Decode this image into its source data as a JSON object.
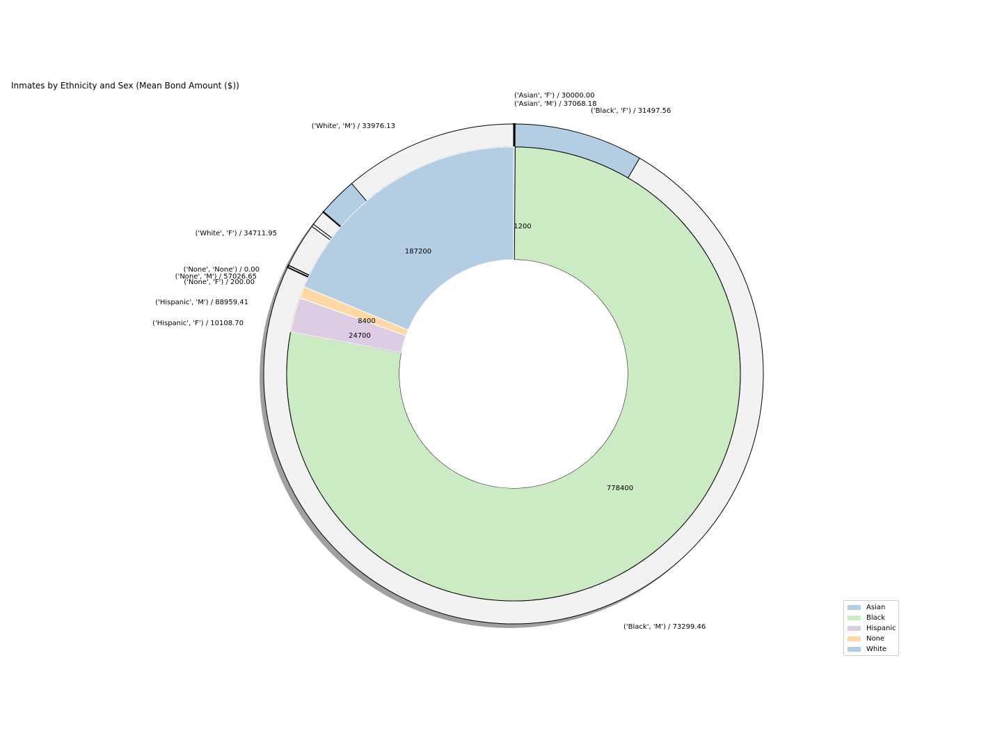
{
  "chart_data": {
    "type": "pie",
    "subtype": "nested-donut",
    "title": "Inmates by Ethnicity and Sex (Mean Bond Amount ($))",
    "inner_ring": {
      "description": "Total bond amount by ethnicity",
      "categories": [
        "Asian",
        "Black",
        "Hispanic",
        "None",
        "White"
      ],
      "values": [
        1200,
        778400,
        24700,
        8400,
        187200
      ],
      "labels": [
        "1200",
        "778400",
        "24700",
        "8400",
        "187200"
      ],
      "colors": [
        "#b3cde3",
        "#ccebc5",
        "#decbe4",
        "#fed9a6",
        "#b3cde3"
      ]
    },
    "outer_ring": {
      "description": "Mean bond amount by (ethnicity, sex)",
      "labels": [
        "('Asian', 'F') / 30000.00",
        "('Asian', 'M') / 37068.18",
        "('Black', 'F') / 31497.56",
        "('Black', 'M') / 73299.46",
        "('Hispanic', 'F') / 10108.70",
        "('Hispanic', 'M') / 88959.41",
        "('None', 'F') / 200.00",
        "('None', 'M') / 57026.65",
        "('None', 'None') / 0.00",
        "('White', 'F') / 34711.95",
        "('White', 'M') / 33976.13"
      ],
      "values": [
        30000.0,
        37068.18,
        31497.56,
        73299.46,
        10108.7,
        88959.41,
        200.0,
        57026.65,
        0.0,
        34711.95,
        33976.13
      ],
      "share_percent": [
        0.1,
        0.02,
        9.66,
        85.47,
        0.18,
        3.34,
        0.2,
        1.16,
        0.04,
        2.94,
        13.03
      ],
      "colors": [
        "#b3cde3",
        "#f2f2f2",
        "#b3cde3",
        "#f2f2f2",
        "#f2f2f2",
        "#f2f2f2",
        "#f2f2f2",
        "#f2f2f2",
        "#b3cde3",
        "#b3cde3",
        "#f2f2f2"
      ]
    },
    "legend": {
      "position": "lower-right",
      "entries": [
        "Asian",
        "Black",
        "Hispanic",
        "None",
        "White"
      ],
      "colors": [
        "#b3cde3",
        "#ccebc5",
        "#decbe4",
        "#fed9a6",
        "#b3cde3"
      ]
    },
    "shadow": true,
    "start_angle_deg": 90,
    "direction": "clockwise"
  }
}
